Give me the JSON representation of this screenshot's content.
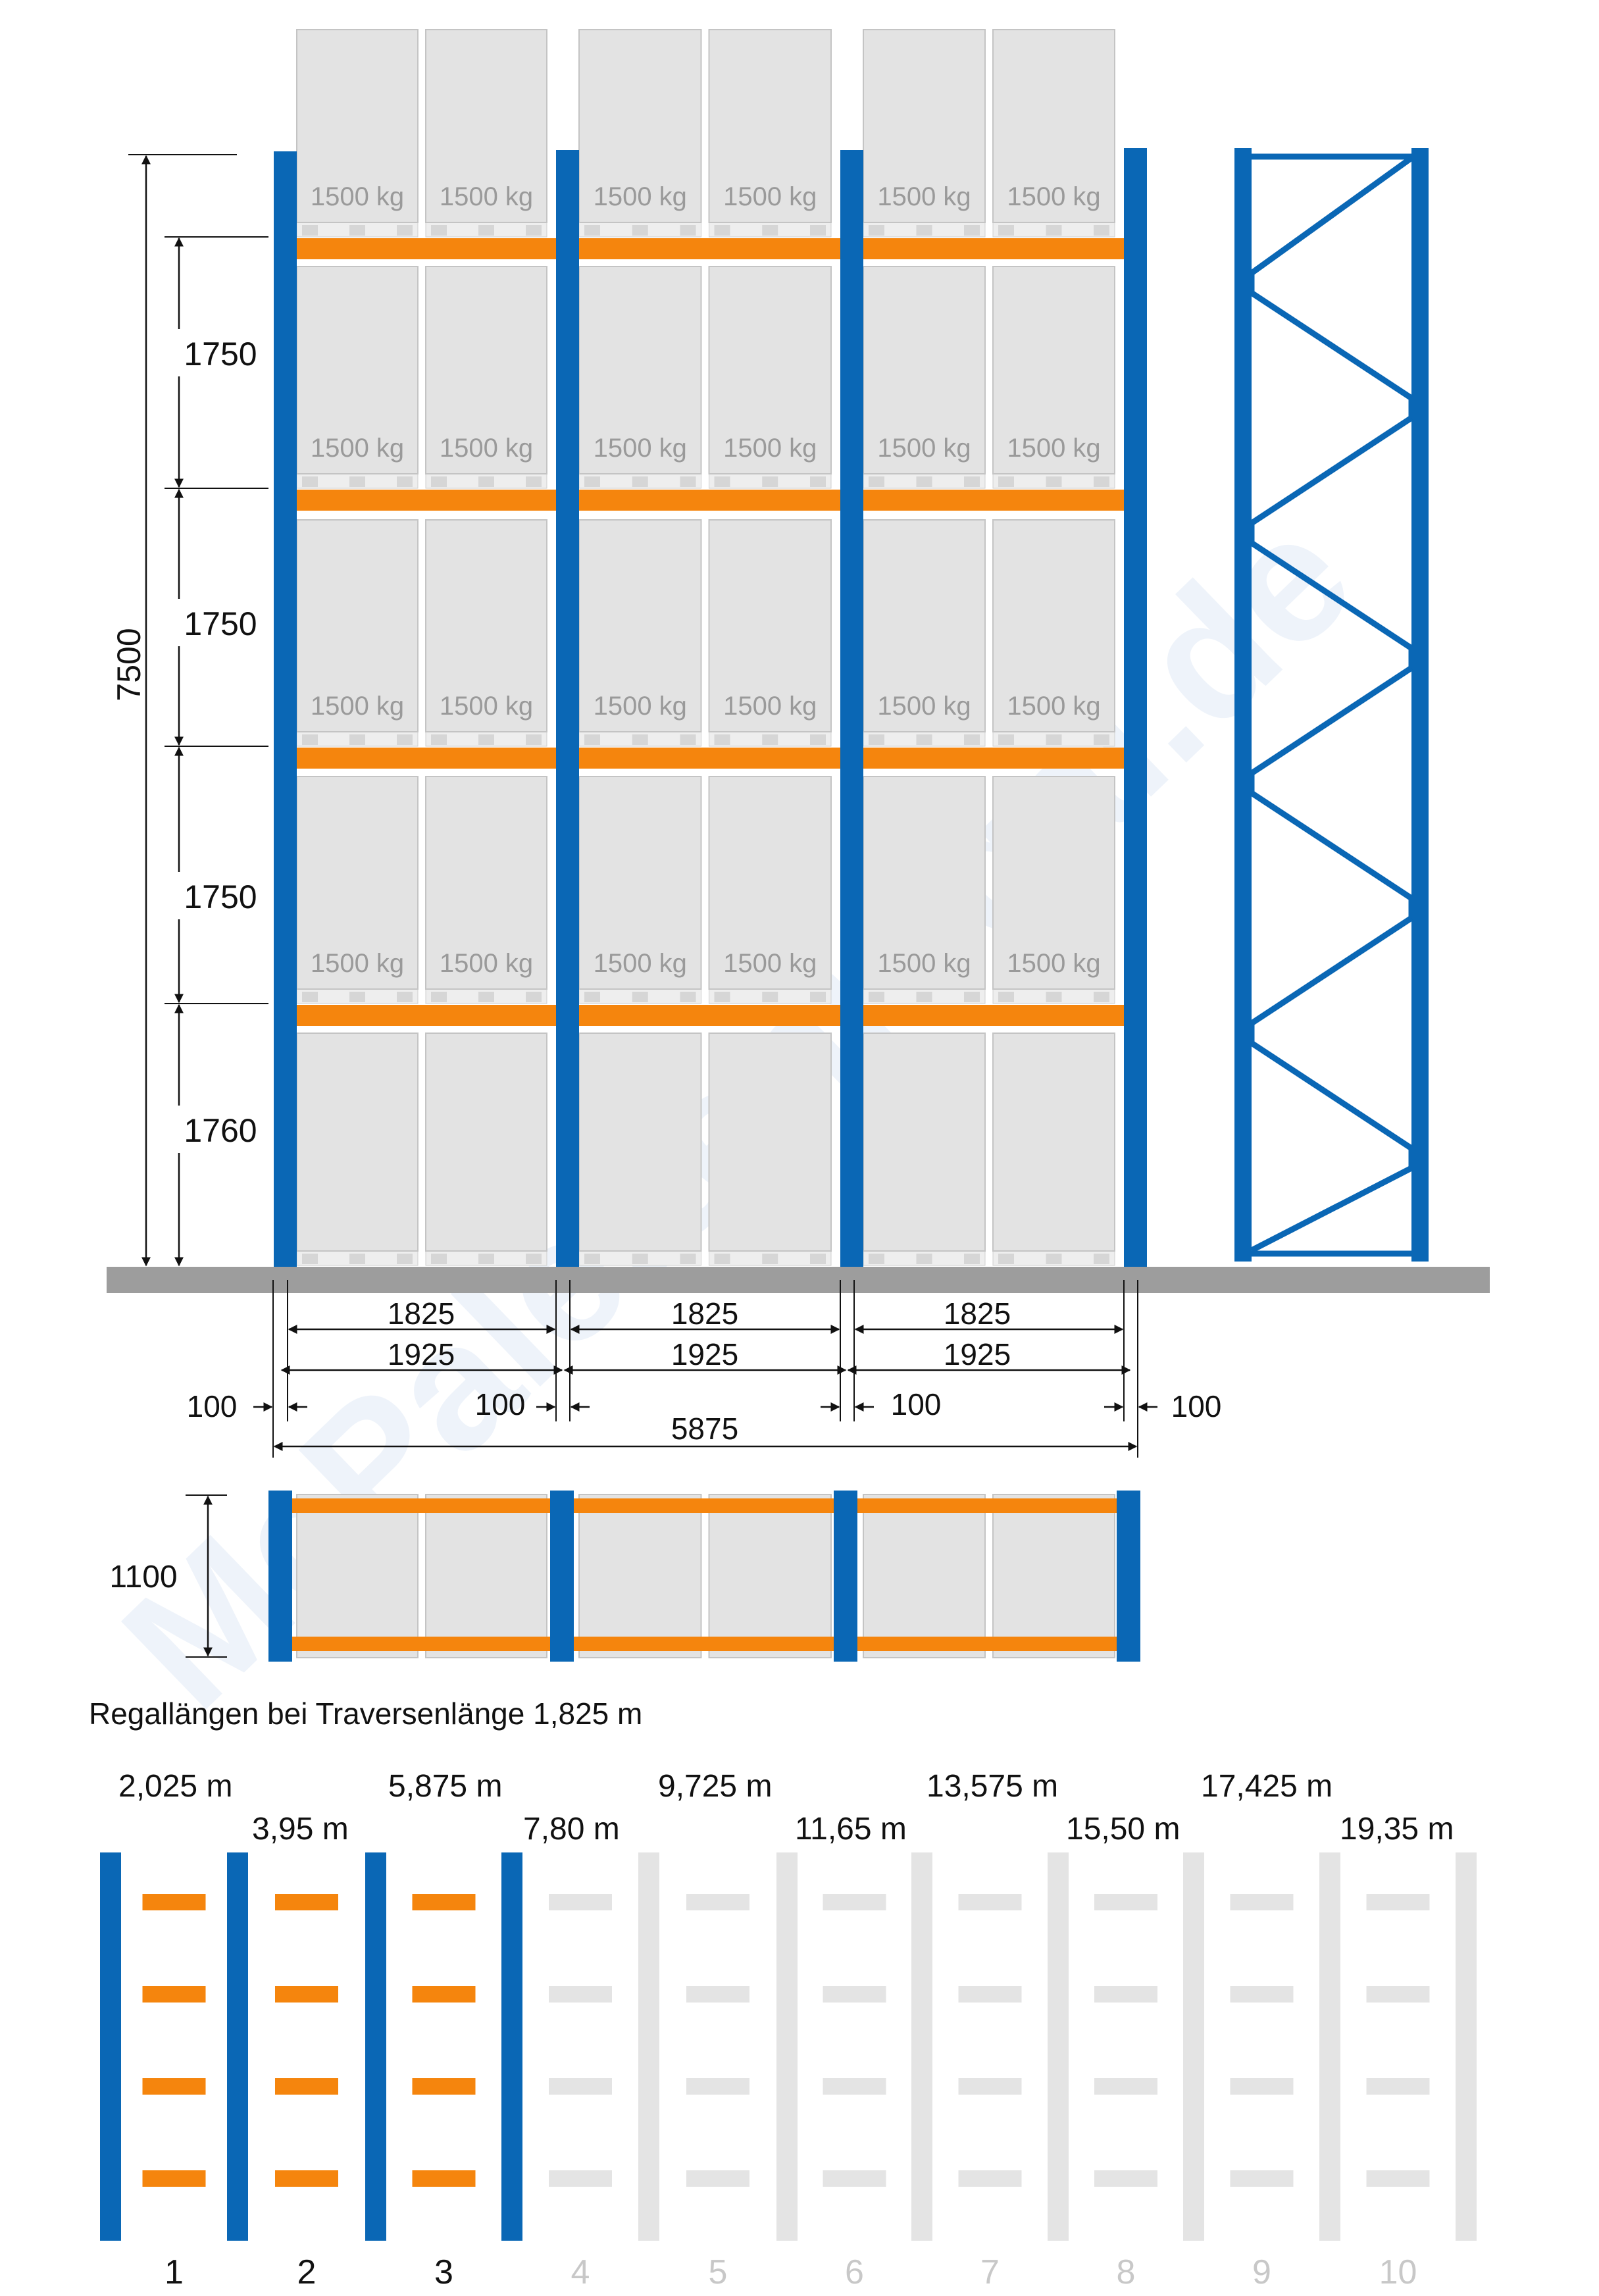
{
  "watermark": "McPalettenregal.de",
  "load_label": "1500 kg",
  "front_view": {
    "total_height": "7500",
    "level_heights": [
      "1750",
      "1750",
      "1750",
      "1760"
    ],
    "beam_length_labels": [
      "1825",
      "1825",
      "1825"
    ],
    "bay_width_labels": [
      "1925",
      "1925",
      "1925"
    ],
    "upright_width_labels": [
      "100",
      "100",
      "100",
      "100"
    ],
    "total_length": "5875"
  },
  "top_view": {
    "depth": "1100"
  },
  "lengths_section": {
    "title": "Regallängen bei Traversenlänge 1,825 m",
    "lengths": [
      "2,025 m",
      "3,95 m",
      "5,875 m",
      "7,80 m",
      "9,725 m",
      "11,65 m",
      "13,575 m",
      "15,50 m",
      "17,425 m",
      "19,35 m"
    ],
    "bay_numbers": [
      "1",
      "2",
      "3",
      "4",
      "5",
      "6",
      "7",
      "8",
      "9",
      "10"
    ],
    "active_bays": 3
  },
  "colors": {
    "upright_blue": "#0a67b5",
    "beam_orange": "#f5850d",
    "pallet_gray": "#e3e3e3",
    "ground_gray": "#9d9d9d",
    "inactive_gray": "#e4e4e4"
  }
}
